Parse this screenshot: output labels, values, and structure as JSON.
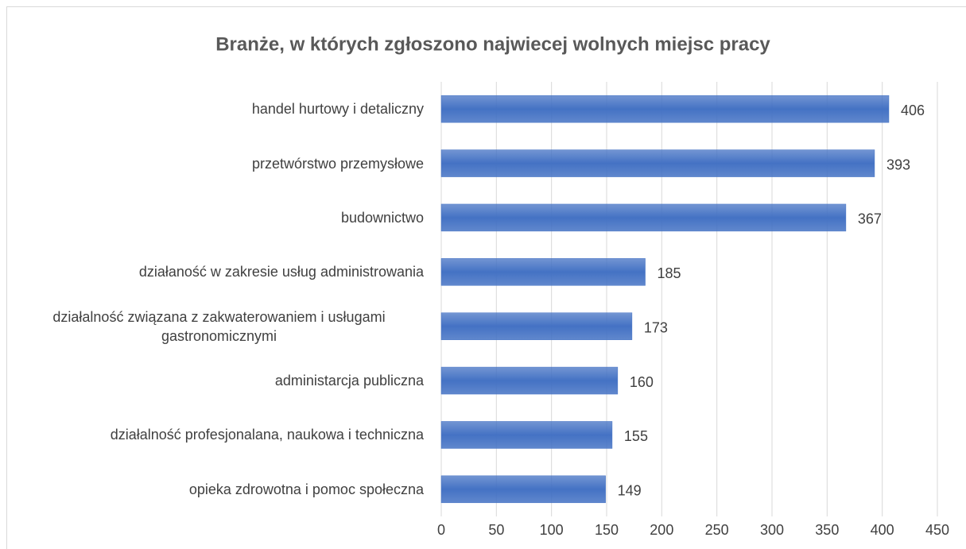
{
  "chart_data": {
    "type": "bar",
    "orientation": "horizontal",
    "title": "Branże, w których zgłoszono najwiecej wolnych miejsc pracy",
    "categories": [
      "handel hurtowy i detaliczny",
      "przetwórstwo przemysłowe",
      "budownictwo",
      "działaność w zakresie usług administrowania",
      "działalność związana z zakwaterowaniem i usługami gastronomicznymi",
      "administarcja publiczna",
      "działalność profesjonalana, naukowa i techniczna",
      "opieka zdrowotna i pomoc społeczna"
    ],
    "values": [
      406,
      393,
      367,
      185,
      173,
      160,
      155,
      149
    ],
    "color": "#4472c4",
    "xlim": [
      0,
      450
    ],
    "xticks": [
      0,
      50,
      100,
      150,
      200,
      250,
      300,
      350,
      400,
      450
    ],
    "grid": true
  }
}
